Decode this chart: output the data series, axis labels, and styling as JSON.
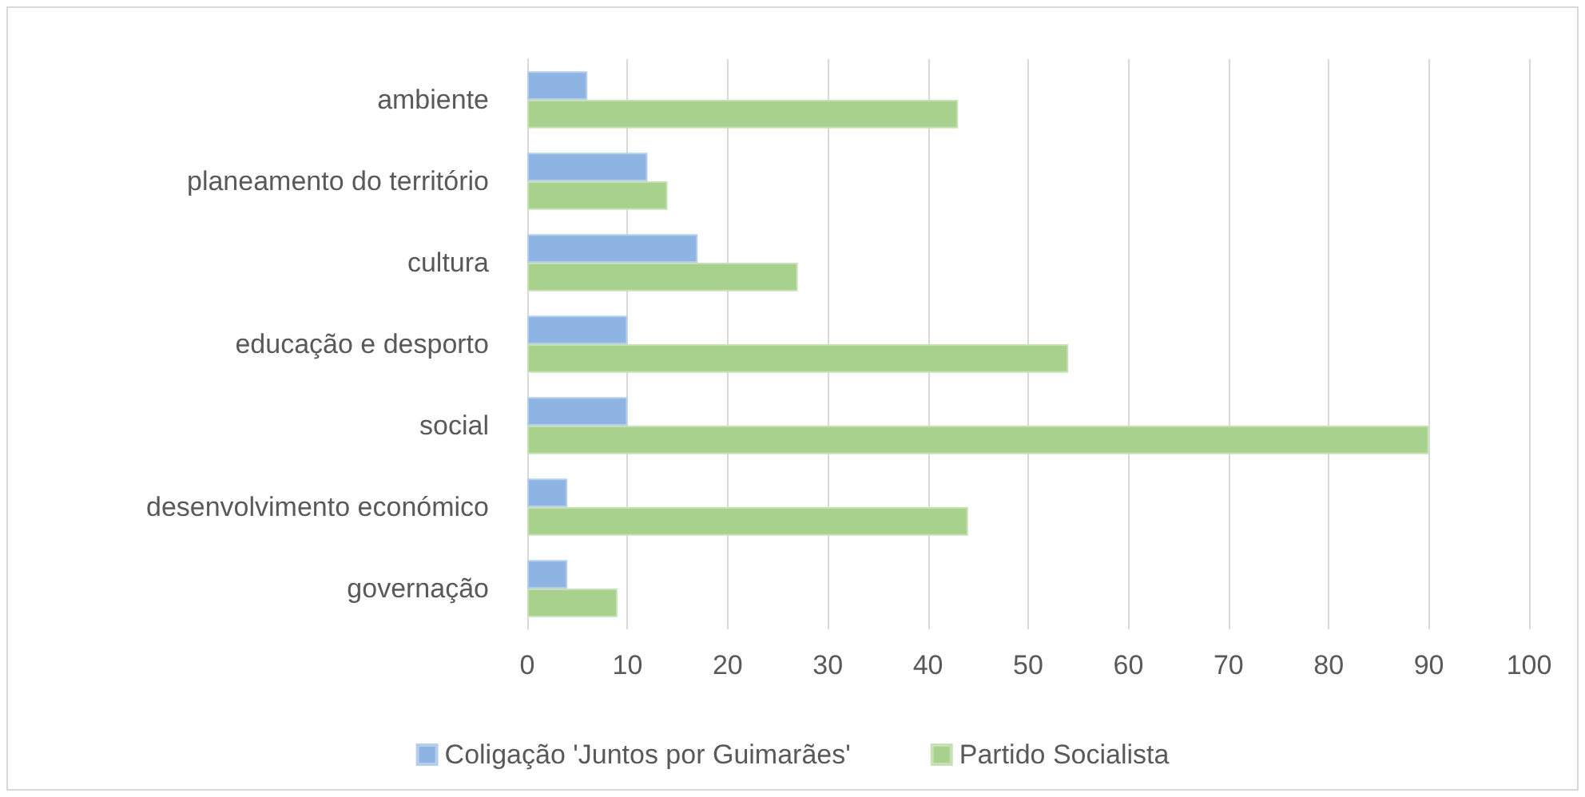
{
  "chart_data": {
    "type": "bar",
    "orientation": "horizontal",
    "categories": [
      "ambiente",
      "planeamento do território",
      "cultura",
      "educação e desporto",
      "social",
      "desenvolvimento económico",
      "governação"
    ],
    "series": [
      {
        "name": "Coligação 'Juntos por Guimarães'",
        "color": "#8eb4e3",
        "values": [
          6,
          12,
          17,
          10,
          10,
          4,
          4
        ]
      },
      {
        "name": "Partido Socialista",
        "color": "#a9d18e",
        "values": [
          43,
          14,
          27,
          54,
          90,
          44,
          9
        ]
      }
    ],
    "xlim": [
      0,
      100
    ],
    "xticks": [
      0,
      10,
      20,
      30,
      40,
      50,
      60,
      70,
      80,
      90,
      100
    ],
    "grid": "x",
    "legend": "bottom"
  }
}
